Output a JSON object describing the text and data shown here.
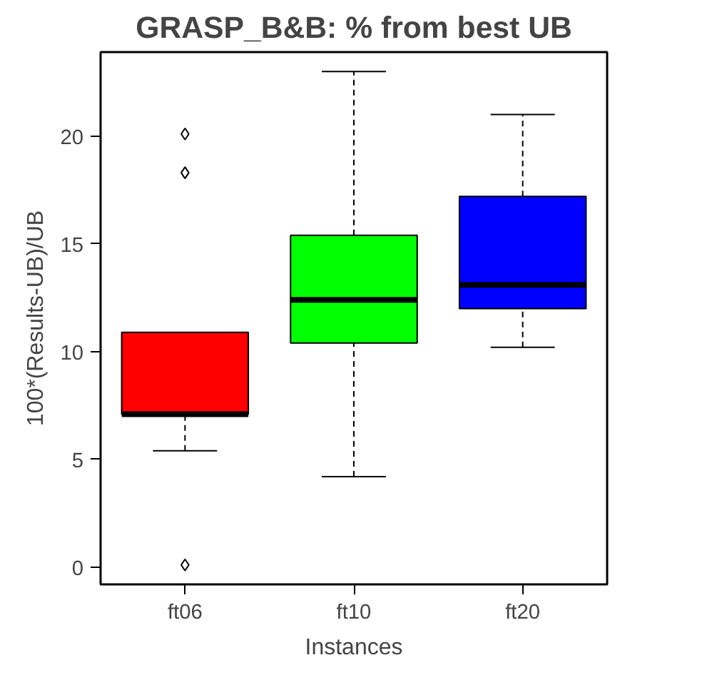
{
  "chart_data": {
    "type": "box",
    "title": "GRASP_B&B: % from best UB",
    "xlabel": "Instances",
    "ylabel": "100*(Results-UB)/UB",
    "categories": [
      "ft06",
      "ft10",
      "ft20"
    ],
    "colors": [
      "#ff0000",
      "#00ff00",
      "#0000ff"
    ],
    "boxes": [
      {
        "low": 5.4,
        "q1": 7.1,
        "median": 7.1,
        "q3": 10.9,
        "high": 10.9,
        "outliers": [
          20.1,
          18.3,
          0.1
        ]
      },
      {
        "low": 4.2,
        "q1": 10.4,
        "median": 12.4,
        "q3": 15.4,
        "high": 23.0
      },
      {
        "low": 10.2,
        "q1": 12.0,
        "median": 13.1,
        "q3": 17.2,
        "high": 21.0
      }
    ],
    "ylim": [
      -0.8,
      23.9
    ],
    "yticks": [
      0,
      5,
      10,
      15,
      20
    ],
    "grid": false
  }
}
